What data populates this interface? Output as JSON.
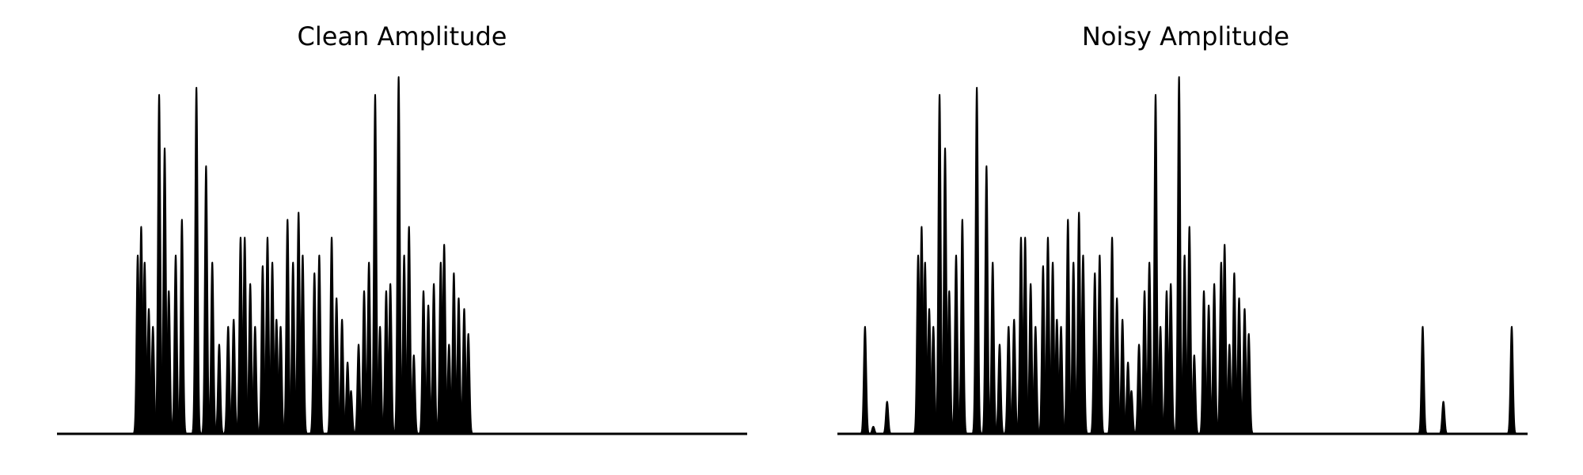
{
  "chart_data": [
    {
      "type": "area",
      "title": "Clean Amplitude",
      "xlabel": "",
      "ylabel": "",
      "xlim": [
        0,
        1000
      ],
      "ylim": [
        0,
        1.0
      ],
      "axes_visible": false,
      "grid": false,
      "color": "#000000",
      "peaks": [
        [
          117,
          0.5
        ],
        [
          122,
          0.58
        ],
        [
          127,
          0.48
        ],
        [
          133,
          0.35
        ],
        [
          139,
          0.3
        ],
        [
          148,
          0.95
        ],
        [
          156,
          0.8
        ],
        [
          162,
          0.4
        ],
        [
          172,
          0.5
        ],
        [
          181,
          0.6
        ],
        [
          202,
          0.97
        ],
        [
          216,
          0.75
        ],
        [
          225,
          0.48
        ],
        [
          235,
          0.25
        ],
        [
          248,
          0.3
        ],
        [
          256,
          0.32
        ],
        [
          266,
          0.55
        ],
        [
          272,
          0.55
        ],
        [
          280,
          0.42
        ],
        [
          287,
          0.3
        ],
        [
          298,
          0.47
        ],
        [
          305,
          0.55
        ],
        [
          312,
          0.48
        ],
        [
          318,
          0.32
        ],
        [
          324,
          0.3
        ],
        [
          334,
          0.6
        ],
        [
          342,
          0.48
        ],
        [
          350,
          0.62
        ],
        [
          356,
          0.5
        ],
        [
          373,
          0.45
        ],
        [
          380,
          0.5
        ],
        [
          398,
          0.55
        ],
        [
          405,
          0.38
        ],
        [
          413,
          0.32
        ],
        [
          421,
          0.2
        ],
        [
          426,
          0.12
        ],
        [
          437,
          0.25
        ],
        [
          445,
          0.4
        ],
        [
          452,
          0.48
        ],
        [
          461,
          0.95
        ],
        [
          468,
          0.3
        ],
        [
          477,
          0.4
        ],
        [
          483,
          0.42
        ],
        [
          495,
          1.0
        ],
        [
          503,
          0.5
        ],
        [
          510,
          0.58
        ],
        [
          517,
          0.22
        ],
        [
          531,
          0.4
        ],
        [
          538,
          0.36
        ],
        [
          546,
          0.42
        ],
        [
          556,
          0.48
        ],
        [
          561,
          0.53
        ],
        [
          568,
          0.25
        ],
        [
          575,
          0.45
        ],
        [
          582,
          0.38
        ],
        [
          590,
          0.35
        ],
        [
          596,
          0.28
        ]
      ]
    },
    {
      "type": "area",
      "title": "Noisy Amplitude",
      "xlabel": "",
      "ylabel": "",
      "xlim": [
        0,
        1000
      ],
      "ylim": [
        0,
        1.0
      ],
      "axes_visible": false,
      "grid": false,
      "color": "#000000",
      "peaks": [
        [
          40,
          0.3
        ],
        [
          52,
          0.02
        ],
        [
          72,
          0.09
        ],
        [
          117,
          0.5
        ],
        [
          122,
          0.58
        ],
        [
          127,
          0.48
        ],
        [
          133,
          0.35
        ],
        [
          139,
          0.3
        ],
        [
          148,
          0.95
        ],
        [
          156,
          0.8
        ],
        [
          162,
          0.4
        ],
        [
          172,
          0.5
        ],
        [
          181,
          0.6
        ],
        [
          202,
          0.97
        ],
        [
          216,
          0.75
        ],
        [
          225,
          0.48
        ],
        [
          235,
          0.25
        ],
        [
          248,
          0.3
        ],
        [
          256,
          0.32
        ],
        [
          266,
          0.55
        ],
        [
          272,
          0.55
        ],
        [
          280,
          0.42
        ],
        [
          287,
          0.3
        ],
        [
          298,
          0.47
        ],
        [
          305,
          0.55
        ],
        [
          312,
          0.48
        ],
        [
          318,
          0.32
        ],
        [
          324,
          0.3
        ],
        [
          334,
          0.6
        ],
        [
          342,
          0.48
        ],
        [
          350,
          0.62
        ],
        [
          356,
          0.5
        ],
        [
          373,
          0.45
        ],
        [
          380,
          0.5
        ],
        [
          398,
          0.55
        ],
        [
          405,
          0.38
        ],
        [
          413,
          0.32
        ],
        [
          421,
          0.2
        ],
        [
          426,
          0.12
        ],
        [
          437,
          0.25
        ],
        [
          445,
          0.4
        ],
        [
          452,
          0.48
        ],
        [
          461,
          0.95
        ],
        [
          468,
          0.3
        ],
        [
          477,
          0.4
        ],
        [
          483,
          0.42
        ],
        [
          495,
          1.0
        ],
        [
          503,
          0.5
        ],
        [
          510,
          0.58
        ],
        [
          517,
          0.22
        ],
        [
          531,
          0.4
        ],
        [
          538,
          0.36
        ],
        [
          546,
          0.42
        ],
        [
          556,
          0.48
        ],
        [
          561,
          0.53
        ],
        [
          568,
          0.25
        ],
        [
          575,
          0.45
        ],
        [
          582,
          0.38
        ],
        [
          590,
          0.35
        ],
        [
          596,
          0.28
        ],
        [
          848,
          0.3
        ],
        [
          878,
          0.09
        ],
        [
          977,
          0.3
        ]
      ]
    }
  ]
}
